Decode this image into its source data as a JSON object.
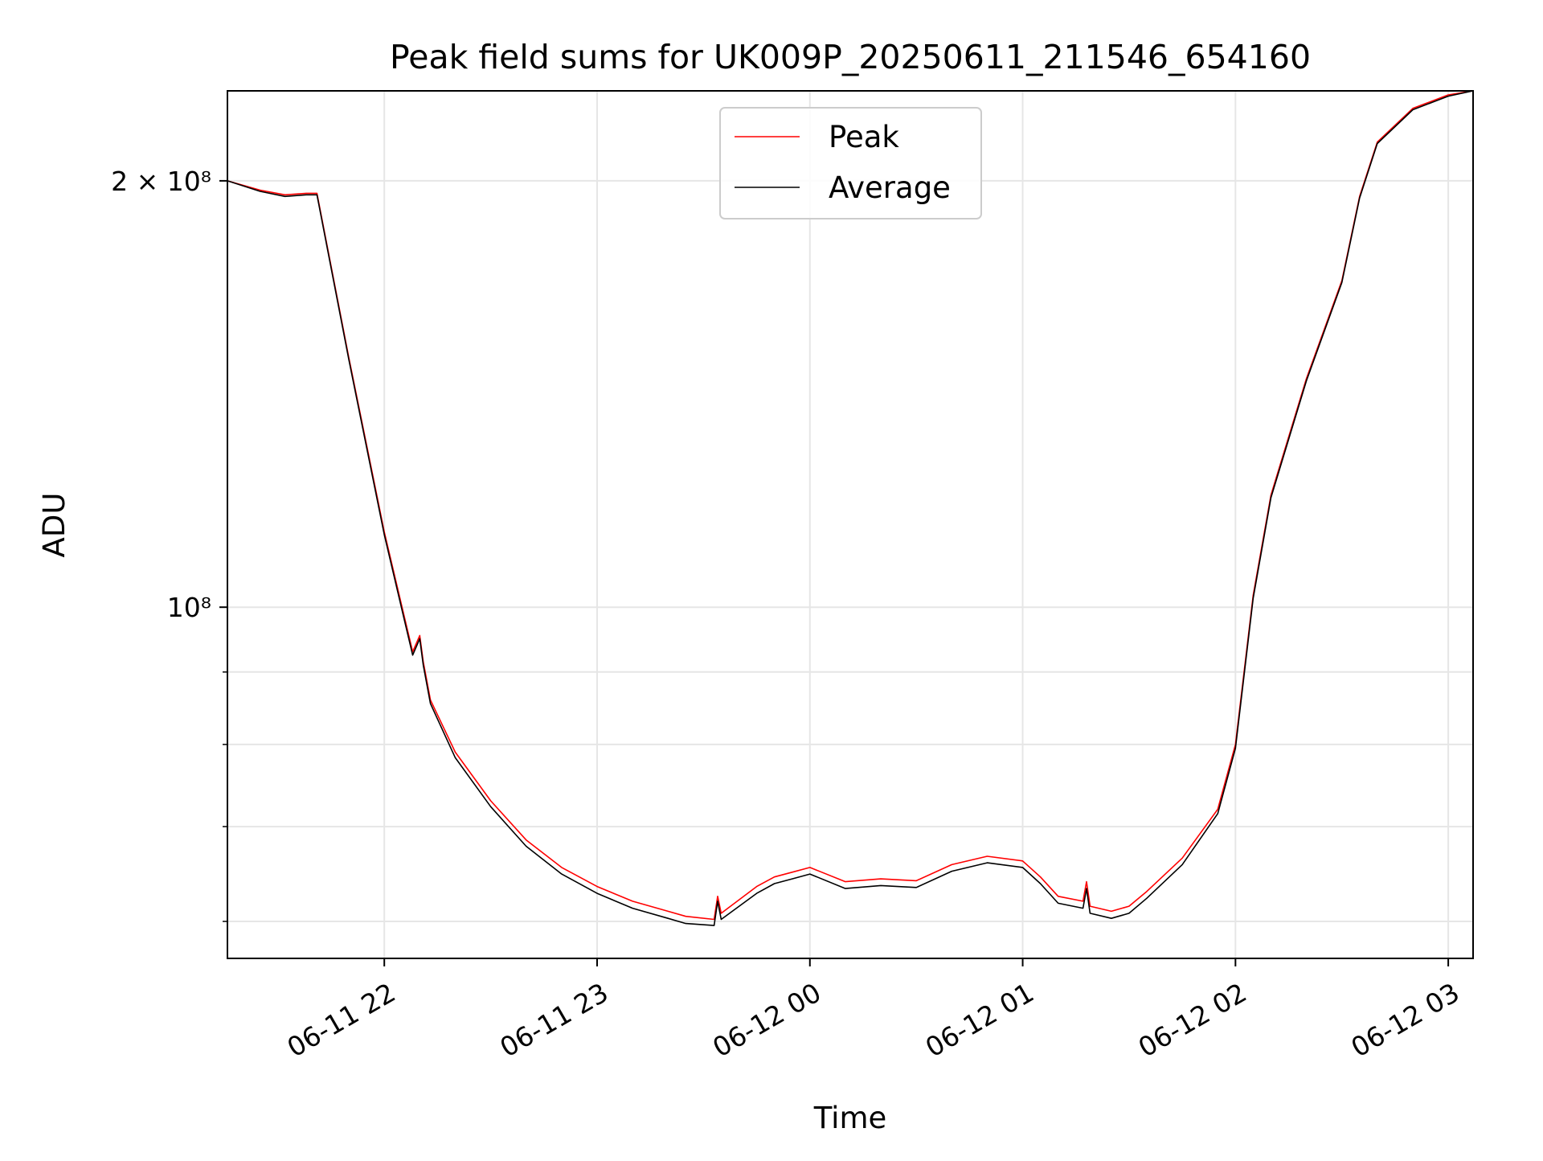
{
  "chart_data": {
    "type": "line",
    "title": "Peak field sums for UK009P_20250611_211546_654160",
    "xlabel": "Time",
    "ylabel": "ADU",
    "yscale": "log",
    "grid": true,
    "legend_position": "upper center",
    "xlim": [
      "2025-06-11 21:15:46",
      "2025-06-12 03:07:00"
    ],
    "ylim": [
      56500000,
      231500000
    ],
    "x_ticks": [
      {
        "value": "2025-06-11 22:00",
        "label": "06-11 22"
      },
      {
        "value": "2025-06-11 23:00",
        "label": "06-11 23"
      },
      {
        "value": "2025-06-12 00:00",
        "label": "06-12 00"
      },
      {
        "value": "2025-06-12 01:00",
        "label": "06-12 01"
      },
      {
        "value": "2025-06-12 02:00",
        "label": "06-12 02"
      },
      {
        "value": "2025-06-12 03:00",
        "label": "06-12 03"
      }
    ],
    "y_ticks_major": [
      {
        "value": 100000000,
        "label": "10⁸"
      },
      {
        "value": 200000000,
        "label": "2 × 10⁸"
      }
    ],
    "y_ticks_minor": [
      60000000,
      70000000,
      80000000,
      90000000
    ],
    "series": [
      {
        "name": "Peak",
        "color": "#ff0000",
        "x": [
          "2025-06-11 21:15:46",
          "2025-06-11 21:25",
          "2025-06-11 21:32",
          "2025-06-11 21:38",
          "2025-06-11 21:41",
          "2025-06-11 21:50",
          "2025-06-11 22:00",
          "2025-06-11 22:05",
          "2025-06-11 22:08",
          "2025-06-11 22:10",
          "2025-06-11 22:11",
          "2025-06-11 22:13",
          "2025-06-11 22:20",
          "2025-06-11 22:30",
          "2025-06-11 22:40",
          "2025-06-11 22:50",
          "2025-06-11 23:00",
          "2025-06-11 23:10",
          "2025-06-11 23:20",
          "2025-06-11 23:25",
          "2025-06-11 23:33",
          "2025-06-11 23:34",
          "2025-06-11 23:35",
          "2025-06-11 23:45",
          "2025-06-11 23:50",
          "2025-06-11 23:55",
          "2025-06-12 00:00",
          "2025-06-12 00:10",
          "2025-06-12 00:20",
          "2025-06-12 00:30",
          "2025-06-12 00:40",
          "2025-06-12 00:50",
          "2025-06-12 01:00",
          "2025-06-12 01:05",
          "2025-06-12 01:10",
          "2025-06-12 01:17",
          "2025-06-12 01:18",
          "2025-06-12 01:19",
          "2025-06-12 01:25",
          "2025-06-12 01:30",
          "2025-06-12 01:35",
          "2025-06-12 01:45",
          "2025-06-12 01:55",
          "2025-06-12 02:00",
          "2025-06-12 02:05",
          "2025-06-12 02:10",
          "2025-06-12 02:20",
          "2025-06-12 02:30",
          "2025-06-12 02:35",
          "2025-06-12 02:40",
          "2025-06-12 02:50",
          "2025-06-12 03:00",
          "2025-06-12 03:07"
        ],
        "y": [
          200000000,
          197000000,
          195500000,
          196000000,
          196000000,
          150000000,
          113000000,
          100000000,
          93000000,
          95500000,
          91500000,
          86000000,
          79000000,
          73000000,
          68500000,
          65500000,
          63500000,
          62000000,
          61000000,
          60500000,
          60200000,
          62500000,
          60800000,
          63500000,
          64500000,
          65000000,
          65500000,
          64000000,
          64300000,
          64100000,
          65800000,
          66700000,
          66200000,
          64500000,
          62500000,
          62000000,
          64000000,
          61500000,
          61000000,
          61500000,
          63000000,
          66500000,
          72000000,
          80000000,
          102000000,
          120000000,
          145000000,
          170000000,
          195000000,
          213000000,
          225000000,
          230000000,
          231500000
        ]
      },
      {
        "name": "Average",
        "color": "#000000",
        "x": [
          "2025-06-11 21:15:46",
          "2025-06-11 21:25",
          "2025-06-11 21:32",
          "2025-06-11 21:38",
          "2025-06-11 21:41",
          "2025-06-11 21:50",
          "2025-06-11 22:00",
          "2025-06-11 22:05",
          "2025-06-11 22:08",
          "2025-06-11 22:10",
          "2025-06-11 22:11",
          "2025-06-11 22:13",
          "2025-06-11 22:20",
          "2025-06-11 22:30",
          "2025-06-11 22:40",
          "2025-06-11 22:50",
          "2025-06-11 23:00",
          "2025-06-11 23:10",
          "2025-06-11 23:20",
          "2025-06-11 23:25",
          "2025-06-11 23:33",
          "2025-06-11 23:34",
          "2025-06-11 23:35",
          "2025-06-11 23:45",
          "2025-06-11 23:50",
          "2025-06-11 23:55",
          "2025-06-12 00:00",
          "2025-06-12 00:10",
          "2025-06-12 00:20",
          "2025-06-12 00:30",
          "2025-06-12 00:40",
          "2025-06-12 00:50",
          "2025-06-12 01:00",
          "2025-06-12 01:05",
          "2025-06-12 01:10",
          "2025-06-12 01:17",
          "2025-06-12 01:18",
          "2025-06-12 01:19",
          "2025-06-12 01:25",
          "2025-06-12 01:30",
          "2025-06-12 01:35",
          "2025-06-12 01:45",
          "2025-06-12 01:55",
          "2025-06-12 02:00",
          "2025-06-12 02:05",
          "2025-06-12 02:10",
          "2025-06-12 02:20",
          "2025-06-12 02:30",
          "2025-06-12 02:35",
          "2025-06-12 02:40",
          "2025-06-12 02:50",
          "2025-06-12 03:00",
          "2025-06-12 03:07"
        ],
        "y": [
          200000000,
          196600000,
          195000000,
          195500000,
          195500000,
          149500000,
          112500000,
          99500000,
          92500000,
          95000000,
          91000000,
          85500000,
          78300000,
          72300000,
          67800000,
          64800000,
          62800000,
          61300000,
          60300000,
          59800000,
          59600000,
          62000000,
          60200000,
          62800000,
          63800000,
          64300000,
          64800000,
          63300000,
          63600000,
          63400000,
          65100000,
          66000000,
          65500000,
          63800000,
          61800000,
          61300000,
          63300000,
          60800000,
          60300000,
          60800000,
          62300000,
          65800000,
          71500000,
          79500000,
          101500000,
          119500000,
          144500000,
          169500000,
          194500000,
          212500000,
          224500000,
          229500000,
          231500000
        ]
      }
    ]
  }
}
